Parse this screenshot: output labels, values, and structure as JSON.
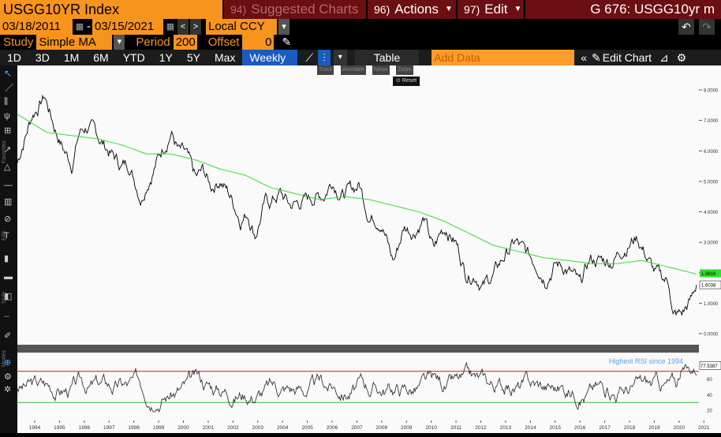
{
  "header": {
    "title": "USGG10YR Index",
    "suggested": {
      "num": "94)",
      "label": "Suggested Charts"
    },
    "actions": {
      "num": "96)",
      "label": "Actions"
    },
    "edit": {
      "num": "97)",
      "label": "Edit"
    },
    "security": "G 676: USGG10yr m"
  },
  "controls": {
    "start_date": "03/18/2011",
    "dash": "-",
    "end_date": "03/15/2021",
    "currency": "Local CCY",
    "study_label": "Study",
    "study_value": "Simple MA",
    "period_label": "Period",
    "period_value": "200",
    "offset_label": "Offset",
    "offset_value": "0"
  },
  "periods": [
    "1D",
    "3D",
    "1M",
    "6M",
    "YTD",
    "1Y",
    "5Y",
    "Max"
  ],
  "frequency": "Weekly ▼",
  "table_label": "Table",
  "add_data_placeholder": "Add Data",
  "edit_chart_label": "Edit Chart",
  "mini_toolbar": [
    "Track",
    "Annotate",
    "News",
    "Zoom"
  ],
  "reset_label": "Reset",
  "side_labels": [
    "Favorites",
    "Edit",
    "Style",
    "Modes"
  ],
  "colors": {
    "price": "#000000",
    "ma": "#33dd33",
    "rsi_upper": "#e01010",
    "rsi_lower": "#33bb33",
    "accent": "#f7941d"
  },
  "chart_data": {
    "type": "line",
    "years": [
      "1994",
      "1995",
      "1996",
      "1997",
      "1998",
      "1999",
      "2000",
      "2001",
      "2002",
      "2003",
      "2004",
      "2005",
      "2006",
      "2007",
      "2008",
      "2009",
      "2010",
      "2011",
      "2012",
      "2013",
      "2014",
      "2015",
      "2016",
      "2017",
      "2018",
      "2019",
      "2020",
      "2021"
    ],
    "price_axis": {
      "ticks": [
        "8.0000",
        "7.0000",
        "6.0000",
        "5.0000",
        "4.0000",
        "3.0000",
        "2.0000",
        "1.0000",
        "0.0000"
      ],
      "min": 0,
      "max": 8
    },
    "price_series": {
      "x": [
        1993.8,
        1994.0,
        1994.4,
        1994.9,
        1995.3,
        1995.7,
        1996.0,
        1996.3,
        1996.6,
        1997.0,
        1997.5,
        1998.0,
        1998.3,
        1998.8,
        1999.0,
        1999.5,
        2000.0,
        2000.3,
        2000.6,
        2001.0,
        2001.3,
        2001.6,
        2002.0,
        2002.4,
        2002.8,
        2003.1,
        2003.4,
        2003.8,
        2004.0,
        2004.4,
        2004.8,
        2005.2,
        2005.8,
        2006.2,
        2006.5,
        2006.9,
        2007.3,
        2007.6,
        2008.0,
        2008.5,
        2008.9,
        2009.0,
        2009.4,
        2009.8,
        2010.2,
        2010.6,
        2010.9,
        2011.1,
        2011.5,
        2011.9,
        2012.3,
        2012.6,
        2013.0,
        2013.5,
        2013.9,
        2014.3,
        2014.8,
        2015.1,
        2015.5,
        2015.9,
        2016.3,
        2016.5,
        2016.9,
        2017.3,
        2017.8,
        2018.2,
        2018.8,
        2019.1,
        2019.5,
        2019.8,
        2020.1,
        2020.25,
        2020.6,
        2021.0,
        2021.2
      ],
      "y": [
        5.6,
        6.2,
        7.2,
        7.8,
        6.8,
        6.0,
        5.6,
        6.6,
        6.8,
        6.5,
        6.0,
        5.5,
        5.6,
        4.5,
        5.0,
        5.8,
        6.7,
        6.0,
        5.8,
        5.0,
        5.3,
        4.8,
        5.1,
        4.5,
        3.8,
        4.0,
        3.3,
        4.3,
        4.3,
        4.6,
        4.2,
        4.3,
        4.5,
        4.6,
        5.1,
        4.6,
        4.7,
        4.9,
        3.9,
        3.8,
        2.5,
        2.4,
        3.5,
        3.4,
        3.8,
        2.7,
        3.3,
        3.5,
        3.0,
        2.0,
        2.0,
        1.6,
        1.9,
        2.6,
        3.0,
        2.6,
        2.3,
        1.9,
        2.3,
        2.2,
        1.8,
        1.5,
        2.4,
        2.4,
        2.4,
        2.8,
        3.2,
        2.7,
        2.0,
        1.8,
        1.7,
        0.6,
        0.6,
        1.1,
        1.6
      ]
    },
    "ma_series": {
      "name": "",
      "x": [
        1993.8,
        1995.0,
        1996.0,
        1997.0,
        1998.0,
        1999.0,
        2000.0,
        2001.0,
        2002.0,
        2003.0,
        2004.0,
        2005.0,
        2006.0,
        2007.0,
        2008.0,
        2009.0,
        2010.0,
        2011.0,
        2012.0,
        2013.0,
        2014.0,
        2015.0,
        2016.0,
        2017.0,
        2018.0,
        2019.0,
        2020.0,
        2021.0,
        2021.2
      ],
      "y": [
        7.2,
        6.6,
        6.5,
        6.4,
        6.2,
        5.9,
        5.9,
        5.7,
        5.4,
        5.2,
        4.8,
        4.6,
        4.4,
        4.5,
        4.4,
        4.2,
        4.0,
        3.7,
        3.3,
        2.9,
        2.7,
        2.5,
        2.4,
        2.3,
        2.3,
        2.4,
        2.2,
        2.0,
        1.95
      ]
    },
    "price_last_label": "1.6038",
    "ma_last_label": "1.9819",
    "rsi_axis": {
      "ticks": [
        "80",
        "60",
        "40",
        "20"
      ],
      "min": 15,
      "max": 90,
      "upper": 70,
      "lower": 30
    },
    "rsi_last_label": "77.5387",
    "rsi_annotation": "Highest RSI since 1994",
    "x_range": [
      1993.8,
      2021.3
    ]
  }
}
